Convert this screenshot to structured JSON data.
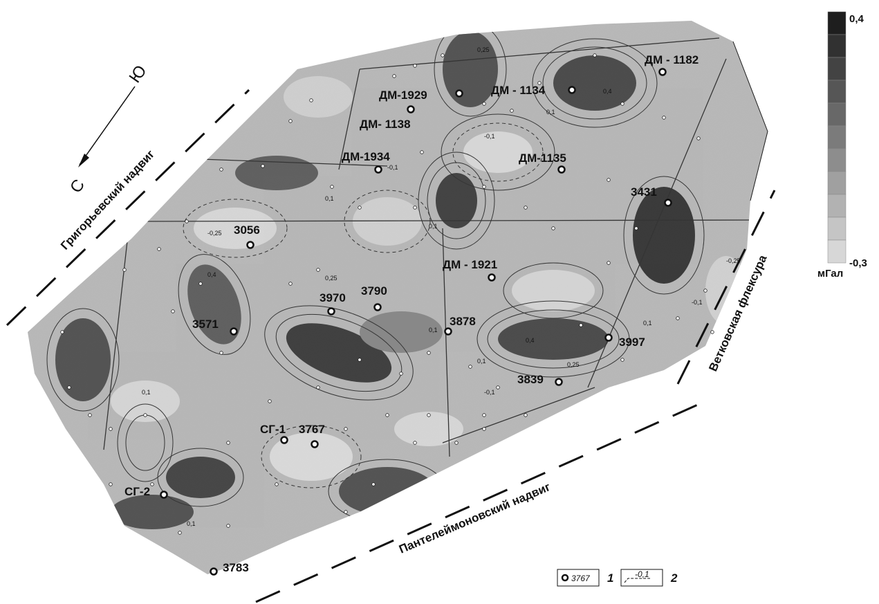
{
  "compass": {
    "north": "С",
    "south": "Ю"
  },
  "faults": {
    "grigoryevsky": "Григорьевский надвиг",
    "panteleymonovsky": "Пантелеймоновский надвиг",
    "vetkovskaya": "Ветковская флексура"
  },
  "scale": {
    "max": "0,4",
    "min": "-0,3",
    "unit": "мГал"
  },
  "wells": [
    {
      "id": "ДМ - 1182",
      "name": "well-dm-1182"
    },
    {
      "id": "ДМ-1929",
      "name": "well-dm-1929"
    },
    {
      "id": "ДМ - 1134",
      "name": "well-dm-1134"
    },
    {
      "id": "ДМ- 1138",
      "name": "well-dm-1138"
    },
    {
      "id": "ДМ-1934",
      "name": "well-dm-1934"
    },
    {
      "id": "ДМ-1135",
      "name": "well-dm-1135"
    },
    {
      "id": "3431",
      "name": "well-3431"
    },
    {
      "id": "3056",
      "name": "well-3056"
    },
    {
      "id": "ДМ - 1921",
      "name": "well-dm-1921"
    },
    {
      "id": "3970",
      "name": "well-3970"
    },
    {
      "id": "3790",
      "name": "well-3790"
    },
    {
      "id": "3571",
      "name": "well-3571"
    },
    {
      "id": "3878",
      "name": "well-3878"
    },
    {
      "id": "3997",
      "name": "well-3997"
    },
    {
      "id": "3839",
      "name": "well-3839"
    },
    {
      "id": "СГ-1",
      "name": "well-sg-1"
    },
    {
      "id": "3767",
      "name": "well-3767"
    },
    {
      "id": "СГ-2",
      "name": "well-sg-2"
    },
    {
      "id": "3783",
      "name": "well-3783"
    }
  ],
  "contour_labels": [
    "0,4",
    "0,25",
    "0,1",
    "-0,1",
    "-0,25",
    "0,4",
    "0,25",
    "0,1",
    "-0,1",
    "0,1",
    "-0,25",
    "0,1",
    "-0,1",
    "0,1",
    "0,25",
    "0,1",
    "-0,1",
    "0,4",
    "0,1",
    "0,1"
  ],
  "legend": {
    "item1": {
      "number": "1",
      "sample": "3767"
    },
    "item2": {
      "number": "2",
      "sample": "-0,1"
    }
  }
}
